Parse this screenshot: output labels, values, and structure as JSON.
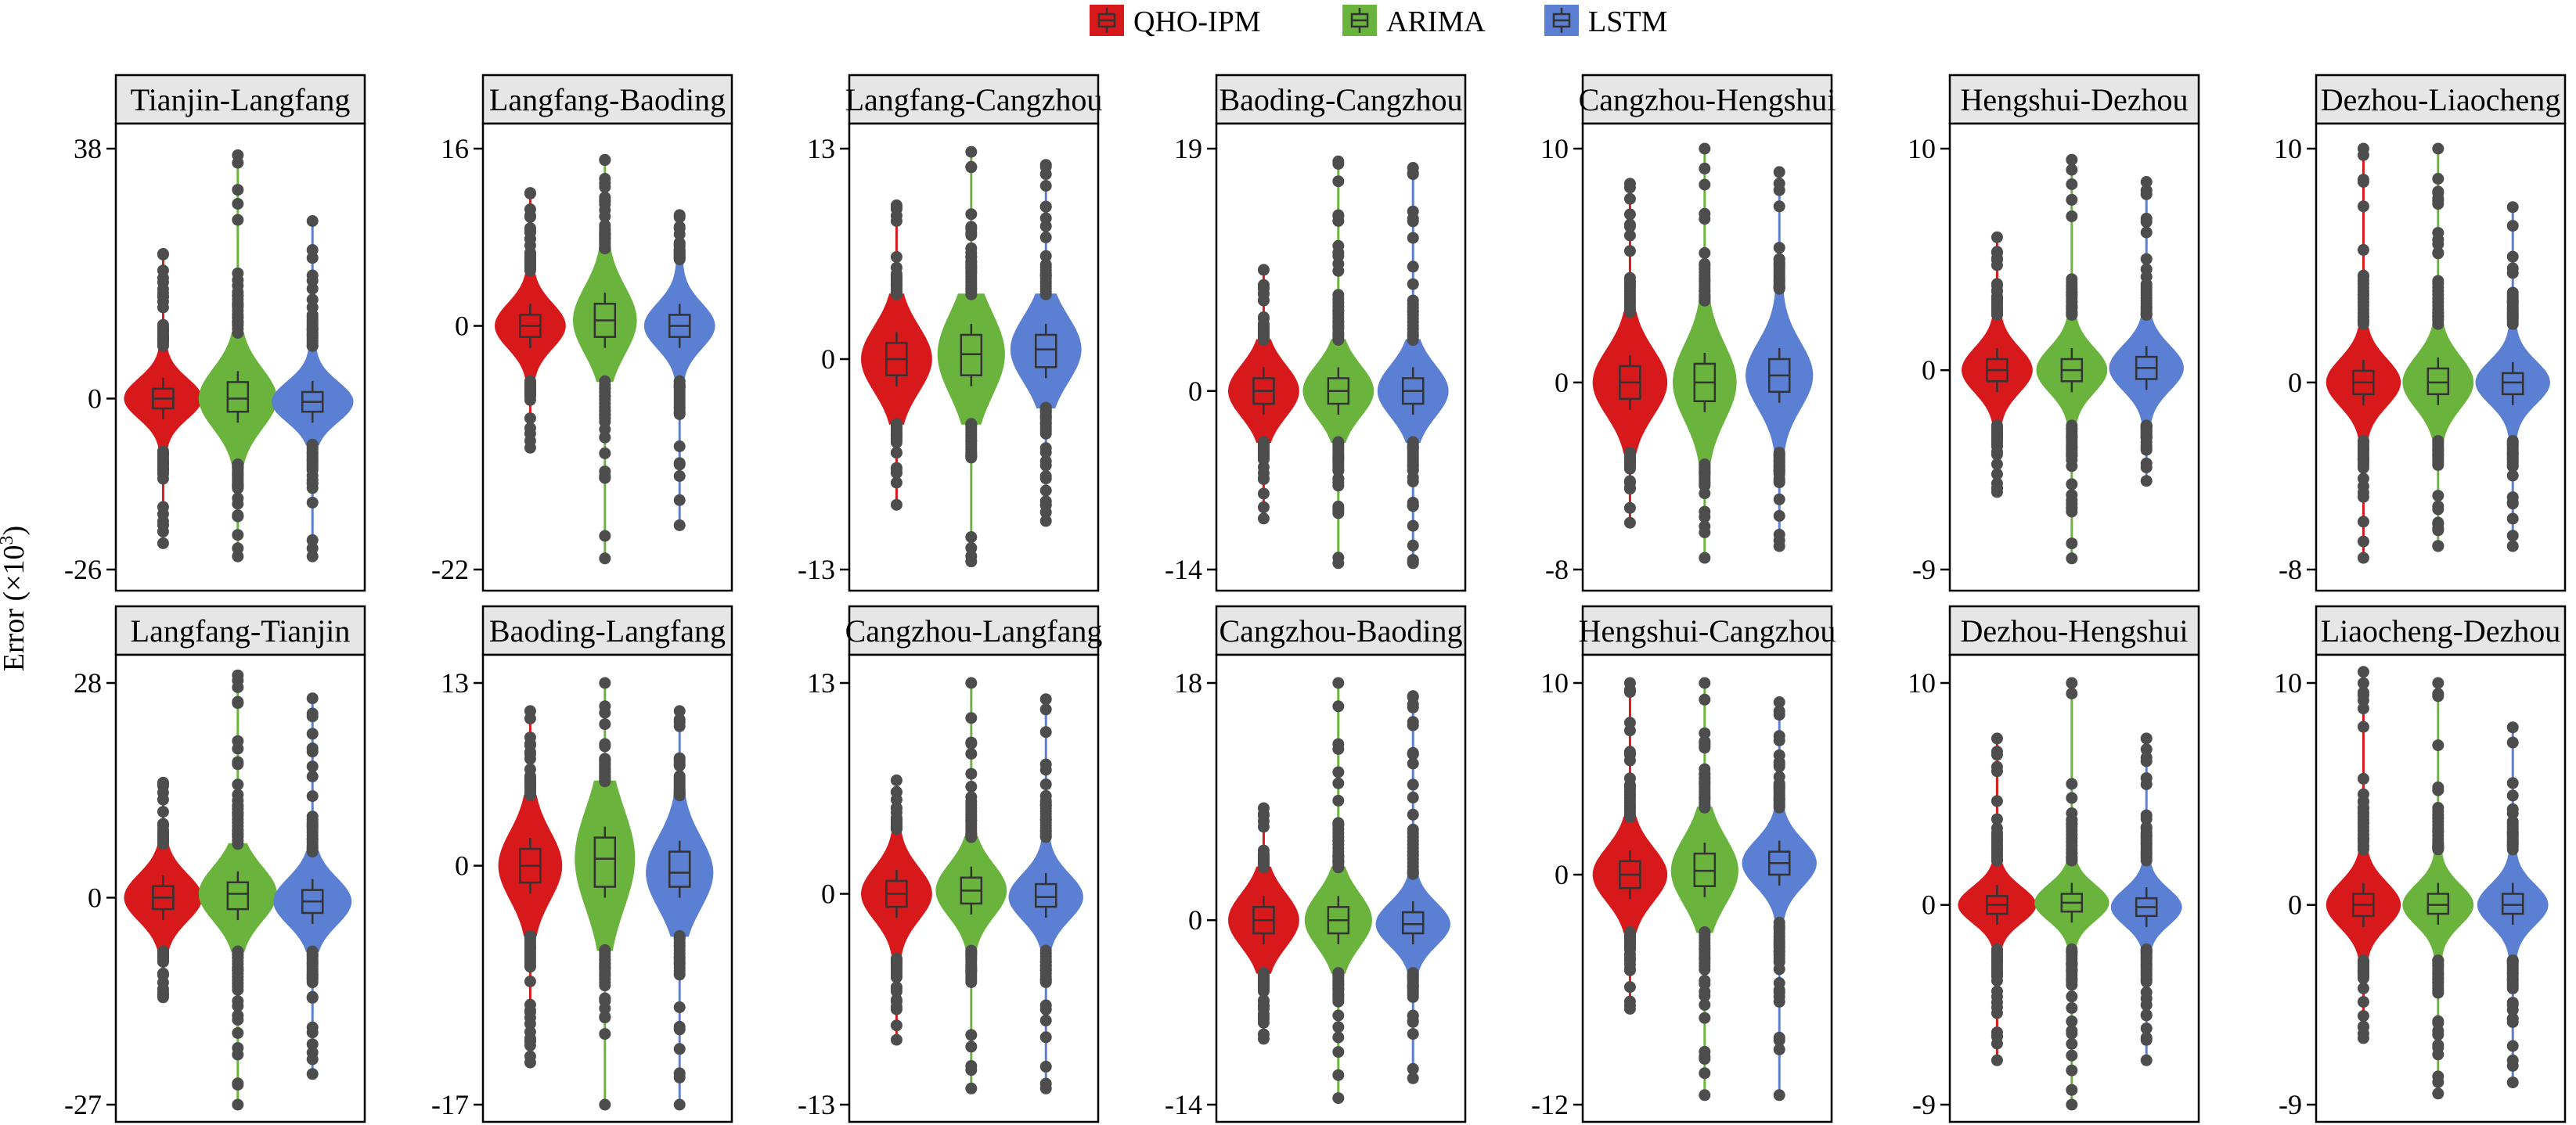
{
  "chart_data": {
    "type": "violin",
    "ylabel": "Error (×10",
    "ylabel_sup": "3",
    "ylabel_tail": ")",
    "legend": [
      {
        "name": "QHO-IPM",
        "color": "#d7191c"
      },
      {
        "name": "ARIMA",
        "color": "#6ab43e"
      },
      {
        "name": "LSTM",
        "color": "#5b7fd3"
      }
    ],
    "outlier_color": "#4d4d4d",
    "panels": [
      {
        "title": "Tianjin-Langfang",
        "ylim": [
          -26,
          38
        ],
        "ticks": [
          38,
          0,
          -26
        ],
        "series": [
          {
            "center": 0,
            "q1": -1.5,
            "q3": 1.5,
            "vmin": -8,
            "vmax": 8,
            "omin": -22,
            "omax": 22,
            "spread": 1.0
          },
          {
            "center": 0,
            "q1": -2,
            "q3": 2.5,
            "vmin": -10,
            "vmax": 10,
            "omin": -24,
            "omax": 37,
            "spread": 1.0
          },
          {
            "center": -0.5,
            "q1": -2,
            "q3": 1,
            "vmin": -7,
            "vmax": 8,
            "omin": -24,
            "omax": 27,
            "spread": 1.05
          }
        ]
      },
      {
        "title": "Langfang-Baoding",
        "ylim": [
          -22,
          16
        ],
        "ticks": [
          16,
          0,
          -22
        ],
        "series": [
          {
            "center": 0,
            "q1": -1,
            "q3": 1,
            "vmin": -5,
            "vmax": 5,
            "omin": -11,
            "omax": 12,
            "spread": 0.9
          },
          {
            "center": 0.5,
            "q1": -1,
            "q3": 2,
            "vmin": -5,
            "vmax": 7,
            "omin": -21,
            "omax": 15,
            "spread": 0.8
          },
          {
            "center": 0,
            "q1": -1,
            "q3": 1,
            "vmin": -5,
            "vmax": 6,
            "omin": -18,
            "omax": 10,
            "spread": 0.9
          }
        ]
      },
      {
        "title": "Langfang-Cangzhou",
        "ylim": [
          -13,
          13
        ],
        "ticks": [
          13,
          0,
          -13
        ],
        "series": [
          {
            "center": 0,
            "q1": -1,
            "q3": 1,
            "vmin": -4,
            "vmax": 4,
            "omin": -9,
            "omax": 9.5,
            "spread": 0.9
          },
          {
            "center": 0.3,
            "q1": -1,
            "q3": 1.5,
            "vmin": -4,
            "vmax": 4,
            "omin": -12.5,
            "omax": 12.8,
            "spread": 0.85
          },
          {
            "center": 0.6,
            "q1": -0.5,
            "q3": 1.5,
            "vmin": -3,
            "vmax": 4,
            "omin": -10,
            "omax": 12,
            "spread": 0.9
          }
        ]
      },
      {
        "title": "Baoding-Cangzhou",
        "ylim": [
          -14,
          19
        ],
        "ticks": [
          19,
          0,
          -14
        ],
        "series": [
          {
            "center": 0,
            "q1": -1,
            "q3": 1,
            "vmin": -4,
            "vmax": 4,
            "omin": -10,
            "omax": 9.5,
            "spread": 0.9
          },
          {
            "center": 0,
            "q1": -1,
            "q3": 1,
            "vmin": -4,
            "vmax": 4,
            "omin": -13.5,
            "omax": 18,
            "spread": 0.9
          },
          {
            "center": 0,
            "q1": -1,
            "q3": 1,
            "vmin": -4,
            "vmax": 4,
            "omin": -13.5,
            "omax": 17.5,
            "spread": 0.9
          }
        ]
      },
      {
        "title": "Cangzhou-Hengshui",
        "ylim": [
          -8,
          10
        ],
        "ticks": [
          10,
          0,
          -8
        ],
        "series": [
          {
            "center": 0,
            "q1": -0.7,
            "q3": 0.7,
            "vmin": -3,
            "vmax": 3,
            "omin": -6,
            "omax": 8.5,
            "spread": 0.95
          },
          {
            "center": 0,
            "q1": -0.8,
            "q3": 0.8,
            "vmin": -3.5,
            "vmax": 3.5,
            "omin": -7.5,
            "omax": 10,
            "spread": 0.8
          },
          {
            "center": 0.3,
            "q1": -0.4,
            "q3": 1,
            "vmin": -3,
            "vmax": 4,
            "omin": -7,
            "omax": 9,
            "spread": 0.85
          }
        ]
      },
      {
        "title": "Hengshui-Dezhou",
        "ylim": [
          -9,
          10
        ],
        "ticks": [
          10,
          0,
          -9
        ],
        "series": [
          {
            "center": 0,
            "q1": -0.5,
            "q3": 0.5,
            "vmin": -2.5,
            "vmax": 2.5,
            "omin": -5.5,
            "omax": 6,
            "spread": 0.9
          },
          {
            "center": 0,
            "q1": -0.5,
            "q3": 0.5,
            "vmin": -2.5,
            "vmax": 2.5,
            "omin": -8.5,
            "omax": 9.5,
            "spread": 0.9
          },
          {
            "center": 0.1,
            "q1": -0.4,
            "q3": 0.6,
            "vmin": -2.5,
            "vmax": 2.5,
            "omin": -5,
            "omax": 8.5,
            "spread": 0.95
          }
        ]
      },
      {
        "title": "Dezhou-Liaocheng",
        "ylim": [
          -8,
          10
        ],
        "ticks": [
          10,
          0,
          -8
        ],
        "series": [
          {
            "center": 0,
            "q1": -0.5,
            "q3": 0.5,
            "vmin": -2.5,
            "vmax": 2.5,
            "omin": -7.5,
            "omax": 10,
            "spread": 0.95
          },
          {
            "center": 0,
            "q1": -0.5,
            "q3": 0.6,
            "vmin": -2.5,
            "vmax": 2.5,
            "omin": -7,
            "omax": 10,
            "spread": 0.9
          },
          {
            "center": 0,
            "q1": -0.5,
            "q3": 0.4,
            "vmin": -2.5,
            "vmax": 2.5,
            "omin": -7,
            "omax": 7.5,
            "spread": 0.95
          }
        ]
      },
      {
        "title": "Langfang-Tianjin",
        "ylim": [
          -27,
          28
        ],
        "ticks": [
          28,
          0,
          -27
        ],
        "series": [
          {
            "center": 0,
            "q1": -1.5,
            "q3": 1.5,
            "vmin": -7,
            "vmax": 7,
            "omin": -13,
            "omax": 15,
            "spread": 1.0
          },
          {
            "center": 0.5,
            "q1": -1.5,
            "q3": 2,
            "vmin": -7,
            "vmax": 7,
            "omin": -27,
            "omax": 29,
            "spread": 1.0
          },
          {
            "center": -0.5,
            "q1": -2,
            "q3": 1,
            "vmin": -7,
            "vmax": 6,
            "omin": -23,
            "omax": 26,
            "spread": 1.0
          }
        ]
      },
      {
        "title": "Baoding-Langfang",
        "ylim": [
          -17,
          13
        ],
        "ticks": [
          13,
          0,
          -17
        ],
        "series": [
          {
            "center": 0,
            "q1": -1.2,
            "q3": 1.2,
            "vmin": -5,
            "vmax": 5,
            "omin": -14,
            "omax": 11,
            "spread": 0.8
          },
          {
            "center": 0.5,
            "q1": -1.5,
            "q3": 2,
            "vmin": -6,
            "vmax": 6,
            "omin": -17,
            "omax": 13,
            "spread": 0.75
          },
          {
            "center": -0.5,
            "q1": -1.5,
            "q3": 1,
            "vmin": -5,
            "vmax": 5,
            "omin": -17,
            "omax": 11,
            "spread": 0.85
          }
        ]
      },
      {
        "title": "Cangzhou-Langfang",
        "ylim": [
          -13,
          13
        ],
        "ticks": [
          13,
          0,
          -13
        ],
        "series": [
          {
            "center": 0,
            "q1": -0.8,
            "q3": 0.8,
            "vmin": -4,
            "vmax": 4,
            "omin": -9,
            "omax": 7,
            "spread": 0.9
          },
          {
            "center": 0.2,
            "q1": -0.6,
            "q3": 1,
            "vmin": -3.5,
            "vmax": 3.5,
            "omin": -12,
            "omax": 13,
            "spread": 0.9
          },
          {
            "center": -0.2,
            "q1": -0.8,
            "q3": 0.6,
            "vmin": -3.5,
            "vmax": 3.5,
            "omin": -12,
            "omax": 12,
            "spread": 0.95
          }
        ]
      },
      {
        "title": "Cangzhou-Baoding",
        "ylim": [
          -14,
          18
        ],
        "ticks": [
          18,
          0,
          -14
        ],
        "series": [
          {
            "center": 0,
            "q1": -1,
            "q3": 1,
            "vmin": -4,
            "vmax": 4,
            "omin": -9,
            "omax": 8.5,
            "spread": 0.9
          },
          {
            "center": 0,
            "q1": -1,
            "q3": 1,
            "vmin": -4,
            "vmax": 4,
            "omin": -13.5,
            "omax": 18,
            "spread": 0.85
          },
          {
            "center": -0.3,
            "q1": -1,
            "q3": 0.6,
            "vmin": -4,
            "vmax": 3.5,
            "omin": -12,
            "omax": 17,
            "spread": 0.95
          }
        ]
      },
      {
        "title": "Hengshui-Cangzhou",
        "ylim": [
          -12,
          10
        ],
        "ticks": [
          10,
          0,
          -12
        ],
        "series": [
          {
            "center": 0,
            "q1": -0.7,
            "q3": 0.7,
            "vmin": -3,
            "vmax": 3,
            "omin": -7,
            "omax": 10,
            "spread": 0.95
          },
          {
            "center": 0.2,
            "q1": -0.6,
            "q3": 1.1,
            "vmin": -3,
            "vmax": 3.5,
            "omin": -11.5,
            "omax": 10,
            "spread": 0.85
          },
          {
            "center": 0.6,
            "q1": 0,
            "q3": 1.2,
            "vmin": -2.5,
            "vmax": 3.5,
            "omin": -11.5,
            "omax": 9,
            "spread": 0.95
          }
        ]
      },
      {
        "title": "Dezhou-Hengshui",
        "ylim": [
          -9,
          10
        ],
        "ticks": [
          10,
          0,
          -9
        ],
        "series": [
          {
            "center": 0,
            "q1": -0.4,
            "q3": 0.4,
            "vmin": -2,
            "vmax": 2,
            "omin": -7,
            "omax": 7.5,
            "spread": 1.0
          },
          {
            "center": 0.1,
            "q1": -0.3,
            "q3": 0.5,
            "vmin": -2,
            "vmax": 2,
            "omin": -9,
            "omax": 10,
            "spread": 0.95
          },
          {
            "center": -0.1,
            "q1": -0.5,
            "q3": 0.3,
            "vmin": -2,
            "vmax": 2,
            "omin": -7,
            "omax": 7.5,
            "spread": 0.9
          }
        ]
      },
      {
        "title": "Liaocheng-Dezhou",
        "ylim": [
          -9,
          10
        ],
        "ticks": [
          10,
          0,
          -9
        ],
        "series": [
          {
            "center": 0,
            "q1": -0.5,
            "q3": 0.5,
            "vmin": -2.5,
            "vmax": 2.5,
            "omin": -6,
            "omax": 10.5,
            "spread": 0.95
          },
          {
            "center": 0,
            "q1": -0.4,
            "q3": 0.5,
            "vmin": -2.5,
            "vmax": 2.5,
            "omin": -8.5,
            "omax": 10,
            "spread": 0.9
          },
          {
            "center": 0,
            "q1": -0.4,
            "q3": 0.5,
            "vmin": -2.5,
            "vmax": 2.5,
            "omin": -8,
            "omax": 8,
            "spread": 0.9
          }
        ]
      }
    ]
  }
}
